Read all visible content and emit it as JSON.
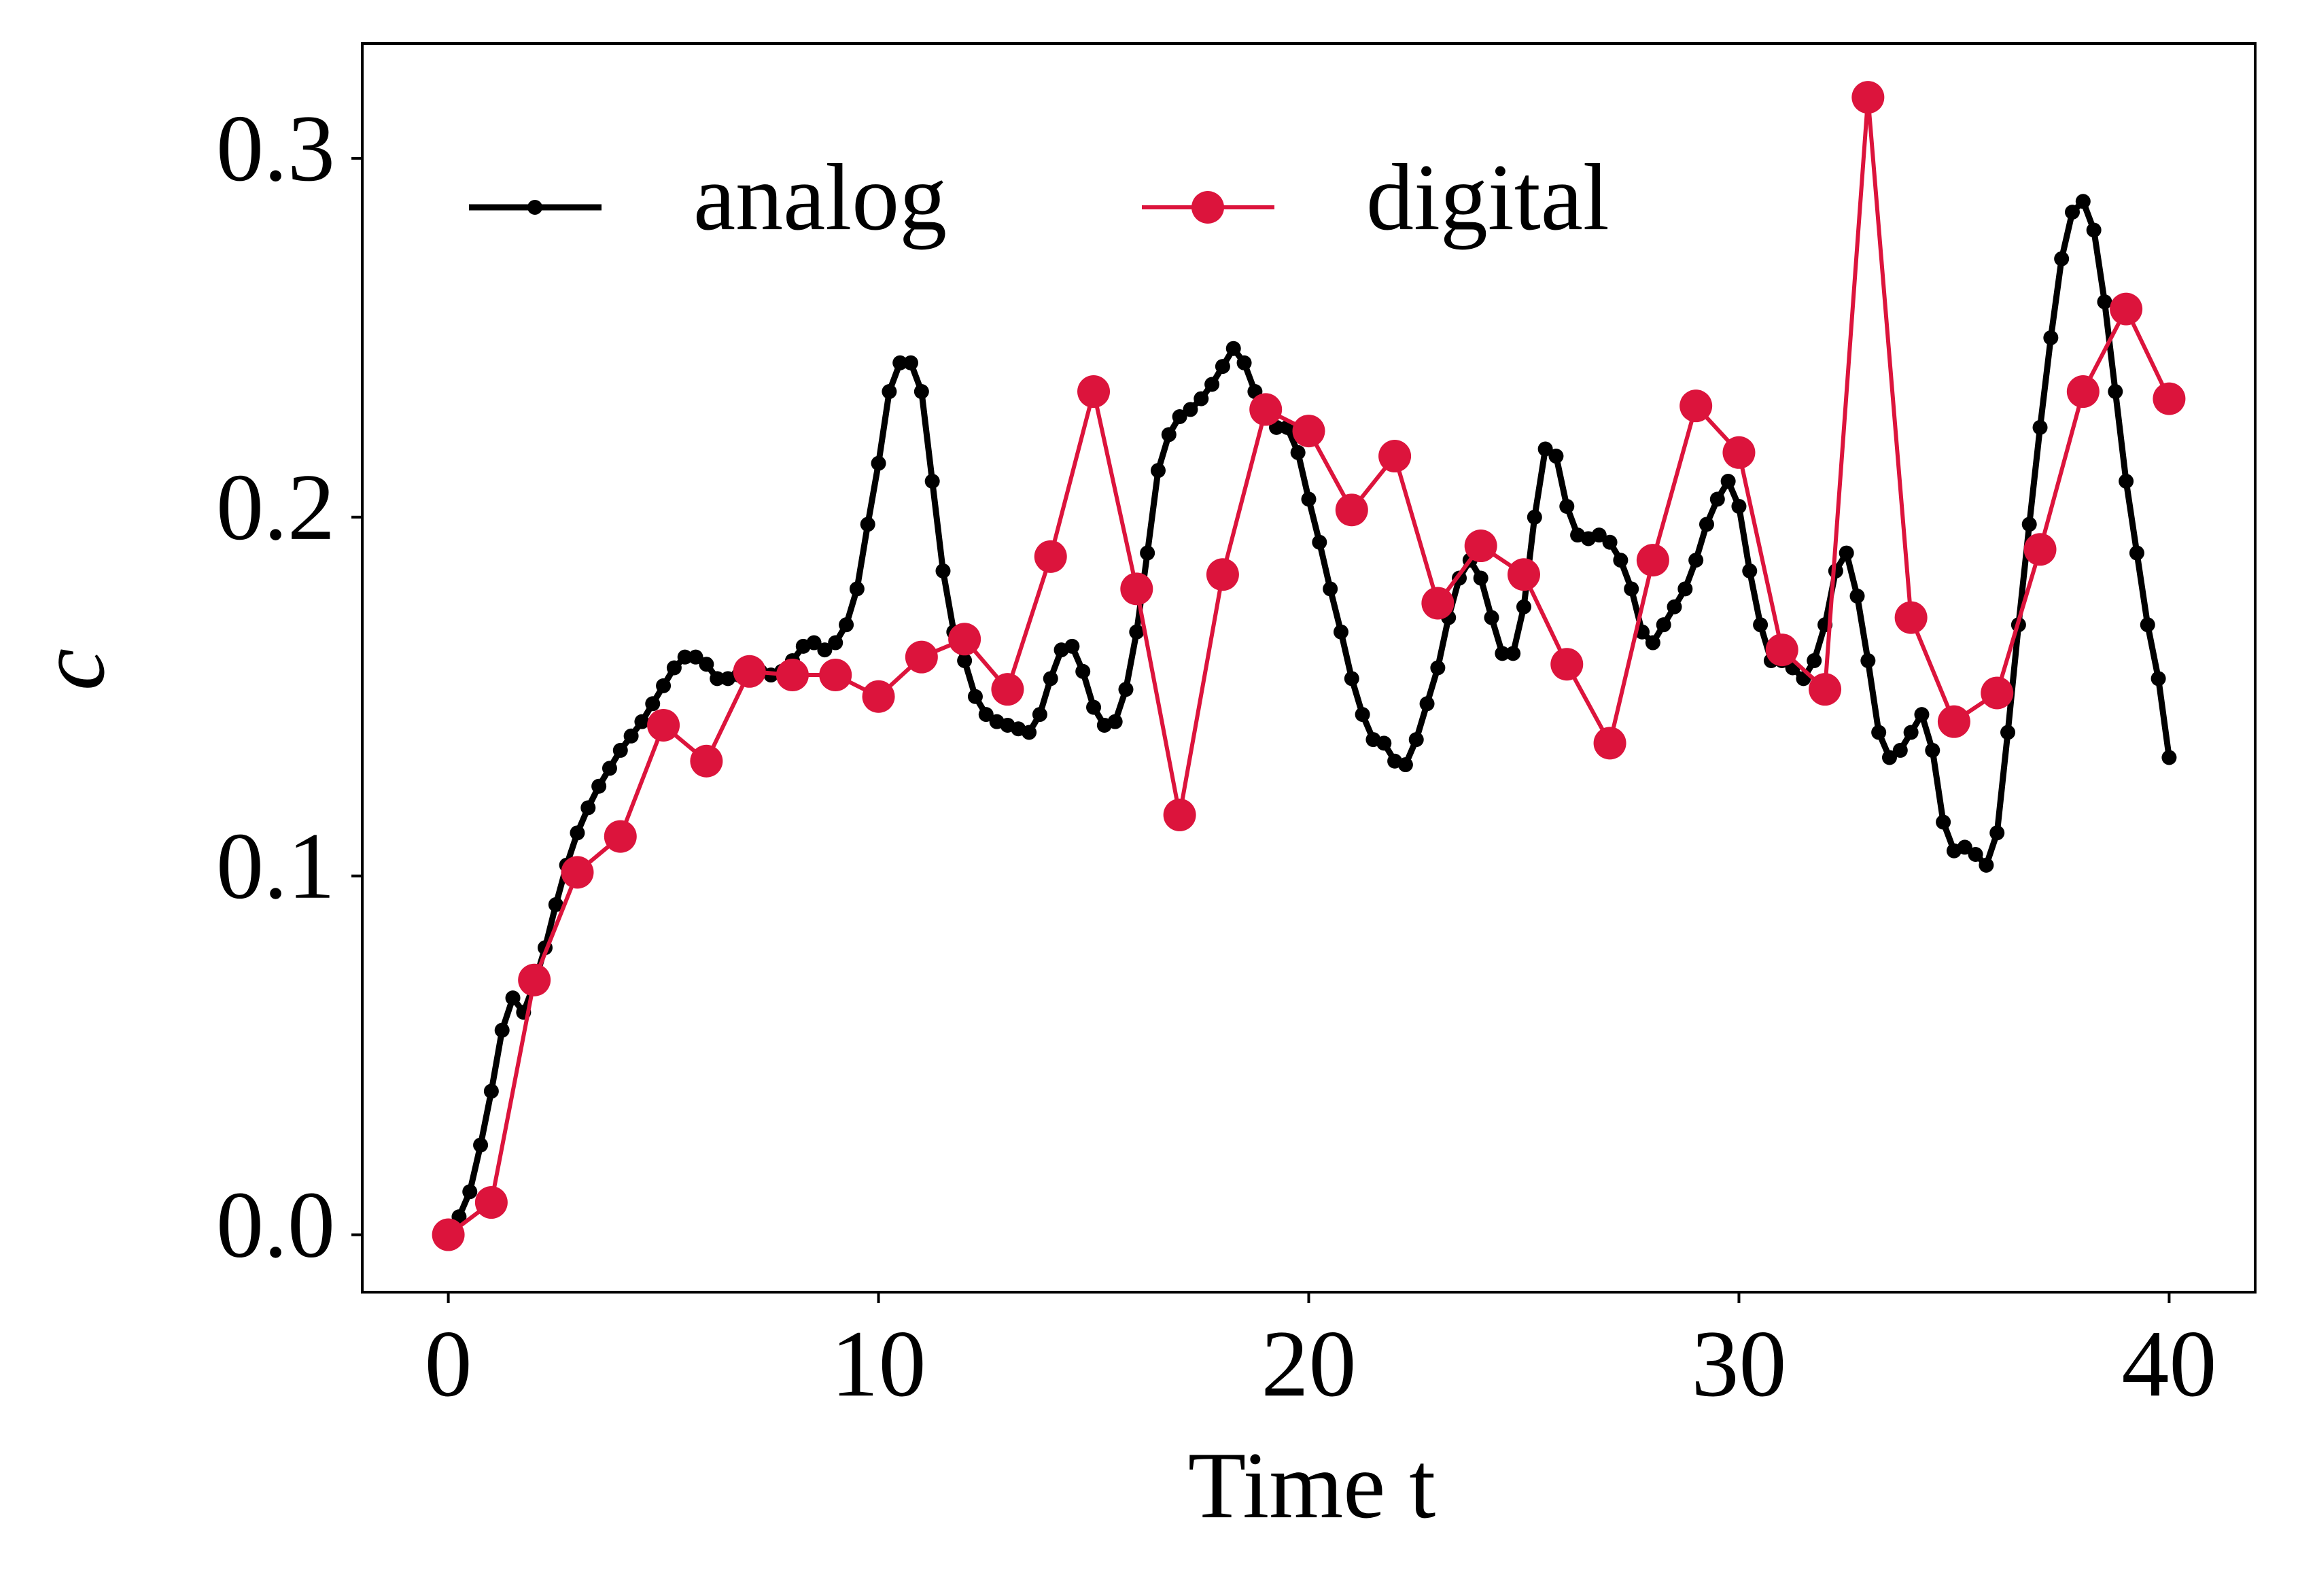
{
  "chart_data": {
    "type": "line",
    "x_label": "Time t",
    "y_label": "c",
    "xlim": [
      -2,
      42
    ],
    "ylim": [
      -0.016,
      0.332
    ],
    "xticks": [
      0,
      10,
      20,
      30,
      40
    ],
    "yticks": [
      {
        "value": 0,
        "label": "0.0"
      },
      0.1,
      0.2,
      0.3
    ],
    "legend": "upper left",
    "series": [
      {
        "name": "analog",
        "color": "#000000",
        "x": [
          0,
          0.25,
          0.5,
          0.75,
          1,
          1.25,
          1.5,
          1.75,
          2,
          2.25,
          2.5,
          2.75,
          3,
          3.25,
          3.5,
          3.75,
          4,
          4.25,
          4.5,
          4.75,
          5,
          5.25,
          5.5,
          5.75,
          6,
          6.25,
          6.5,
          6.75,
          7,
          7.25,
          7.5,
          7.75,
          8,
          8.25,
          8.5,
          8.75,
          9,
          9.25,
          9.5,
          9.75,
          10,
          10.25,
          10.5,
          10.75,
          11,
          11.25,
          11.5,
          11.75,
          12,
          12.25,
          12.5,
          12.75,
          13,
          13.25,
          13.5,
          13.75,
          14,
          14.25,
          14.5,
          14.75,
          15,
          15.25,
          15.5,
          15.75,
          16,
          16.25,
          16.5,
          16.75,
          17,
          17.25,
          17.5,
          17.75,
          18,
          18.25,
          18.5,
          18.75,
          19,
          19.25,
          19.5,
          19.75,
          20,
          20.25,
          20.5,
          20.75,
          21,
          21.25,
          21.5,
          21.75,
          22,
          22.25,
          22.5,
          22.75,
          23,
          23.25,
          23.5,
          23.75,
          24,
          24.25,
          24.5,
          24.75,
          25,
          25.25,
          25.5,
          25.75,
          26,
          26.25,
          26.5,
          26.75,
          27,
          27.25,
          27.5,
          27.75,
          28,
          28.25,
          28.5,
          28.75,
          29,
          29.25,
          29.5,
          29.75,
          30,
          30.25,
          30.5,
          30.75,
          31,
          31.25,
          31.5,
          31.75,
          32,
          32.25,
          32.5,
          32.75,
          33,
          33.25,
          33.5,
          33.75,
          34,
          34.25,
          34.5,
          34.75,
          35,
          35.25,
          35.5,
          35.75,
          36,
          36.25,
          36.5,
          36.75,
          37,
          37.25,
          37.5,
          37.75,
          38,
          38.25,
          38.5,
          38.75,
          39,
          39.25,
          39.5,
          39.75,
          40
        ],
        "values": [
          0,
          0.005,
          0.012,
          0.025,
          0.04,
          0.057,
          0.066,
          0.062,
          0.07,
          0.08,
          0.092,
          0.103,
          0.112,
          0.119,
          0.125,
          0.13,
          0.135,
          0.139,
          0.143,
          0.148,
          0.153,
          0.158,
          0.161,
          0.161,
          0.159,
          0.155,
          0.155,
          0.156,
          0.157,
          0.157,
          0.156,
          0.157,
          0.16,
          0.164,
          0.165,
          0.163,
          0.165,
          0.17,
          0.18,
          0.198,
          0.215,
          0.235,
          0.243,
          0.243,
          0.235,
          0.21,
          0.185,
          0.168,
          0.16,
          0.15,
          0.145,
          0.143,
          0.142,
          0.141,
          0.14,
          0.145,
          0.155,
          0.163,
          0.164,
          0.157,
          0.147,
          0.142,
          0.143,
          0.152,
          0.168,
          0.19,
          0.213,
          0.223,
          0.228,
          0.23,
          0.233,
          0.237,
          0.242,
          0.247,
          0.243,
          0.235,
          0.228,
          0.225,
          0.225,
          0.218,
          0.205,
          0.193,
          0.18,
          0.168,
          0.155,
          0.145,
          0.138,
          0.137,
          0.132,
          0.131,
          0.138,
          0.148,
          0.158,
          0.172,
          0.183,
          0.188,
          0.183,
          0.172,
          0.162,
          0.162,
          0.175,
          0.2,
          0.219,
          0.217,
          0.203,
          0.195,
          0.194,
          0.195,
          0.193,
          0.188,
          0.18,
          0.168,
          0.165,
          0.17,
          0.175,
          0.18,
          0.188,
          0.198,
          0.205,
          0.21,
          0.203,
          0.185,
          0.17,
          0.16,
          0.16,
          0.158,
          0.155,
          0.16,
          0.17,
          0.185,
          0.19,
          0.178,
          0.16,
          0.14,
          0.133,
          0.135,
          0.14,
          0.145,
          0.135,
          0.115,
          0.107,
          0.108,
          0.106,
          0.103,
          0.112,
          0.14,
          0.17,
          0.198,
          0.225,
          0.25,
          0.272,
          0.285,
          0.288,
          0.28,
          0.26,
          0.235,
          0.21,
          0.19,
          0.17,
          0.155,
          0.133
        ]
      },
      {
        "name": "digital",
        "color": "#dc143c",
        "x": [
          0,
          1,
          2,
          3,
          4,
          5,
          6,
          7,
          8,
          9,
          10,
          11,
          12,
          13,
          14,
          15,
          16,
          17,
          18,
          19,
          20,
          21,
          22,
          23,
          24,
          25,
          26,
          27,
          28,
          29,
          30,
          31,
          32,
          33,
          34,
          35,
          36,
          37,
          38,
          39,
          40
        ],
        "values": [
          0,
          0.009,
          0.071,
          0.101,
          0.111,
          0.142,
          0.132,
          0.157,
          0.156,
          0.156,
          0.15,
          0.161,
          0.166,
          0.152,
          0.189,
          0.235,
          0.18,
          0.117,
          0.184,
          0.23,
          0.224,
          0.202,
          0.217,
          0.176,
          0.192,
          0.184,
          0.159,
          0.137,
          0.188,
          0.231,
          0.218,
          0.163,
          0.152,
          0.317,
          0.172,
          0.143,
          0.151,
          0.191,
          0.235,
          0.258,
          0.233
        ]
      }
    ]
  }
}
